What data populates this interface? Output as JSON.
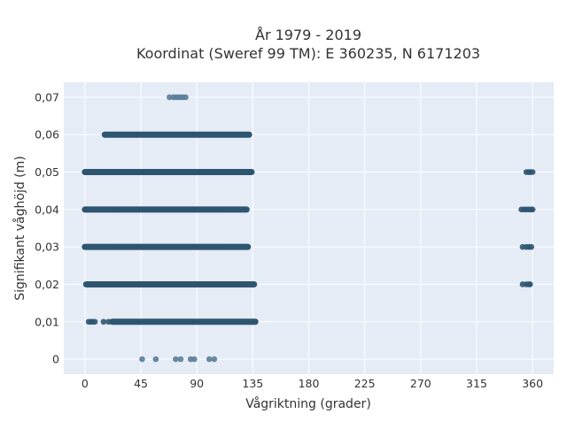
{
  "chart_data": {
    "type": "scatter",
    "title_lines": [
      "År 1979 - 2019",
      "Koordinat (Sweref 99 TM): E 360235, N 6171203"
    ],
    "xlabel": "Vågriktning (grader)",
    "ylabel": "Signifikant våghöjd (m)",
    "xlim": [
      -17,
      377
    ],
    "ylim": [
      -0.004,
      0.074
    ],
    "x_ticks": [
      0,
      45,
      90,
      135,
      180,
      225,
      270,
      315,
      360
    ],
    "x_tick_labels": [
      "0",
      "45",
      "90",
      "135",
      "180",
      "225",
      "270",
      "315",
      "360"
    ],
    "y_ticks": [
      0,
      0.01,
      0.02,
      0.03,
      0.04,
      0.05,
      0.06,
      0.07
    ],
    "y_tick_labels": [
      "0",
      "0,01",
      "0,02",
      "0,03",
      "0,04",
      "0,05",
      "0,06",
      "0,07"
    ],
    "grid": true,
    "background_color": "#e5ecf6",
    "marker_color": "#2e5570",
    "sparse_marker_color": "#5b7d99",
    "series": [
      {
        "y": 0,
        "dense_ranges": [],
        "points": [
          46,
          57,
          73,
          77,
          85,
          88,
          100,
          104
        ]
      },
      {
        "y": 0.01,
        "dense_ranges": [
          [
            22,
            137
          ]
        ],
        "points": [
          3,
          5,
          6,
          8,
          15,
          19,
          136,
          137
        ]
      },
      {
        "y": 0.02,
        "dense_ranges": [
          [
            1,
            136
          ]
        ],
        "points": [
          352,
          355,
          357,
          358
        ]
      },
      {
        "y": 0.03,
        "dense_ranges": [
          [
            0,
            131
          ]
        ],
        "points": [
          352,
          355,
          357,
          359
        ]
      },
      {
        "y": 0.04,
        "dense_ranges": [
          [
            0,
            130
          ]
        ],
        "points": [
          351,
          353,
          355,
          357,
          359,
          360
        ]
      },
      {
        "y": 0.05,
        "dense_ranges": [
          [
            0,
            134
          ]
        ],
        "points": [
          355,
          357,
          358,
          360
        ]
      },
      {
        "y": 0.06,
        "dense_ranges": [
          [
            16,
            132
          ]
        ],
        "points": []
      },
      {
        "y": 0.07,
        "dense_ranges": [],
        "points": [
          68,
          71,
          73,
          75,
          77,
          79,
          81
        ]
      }
    ]
  }
}
